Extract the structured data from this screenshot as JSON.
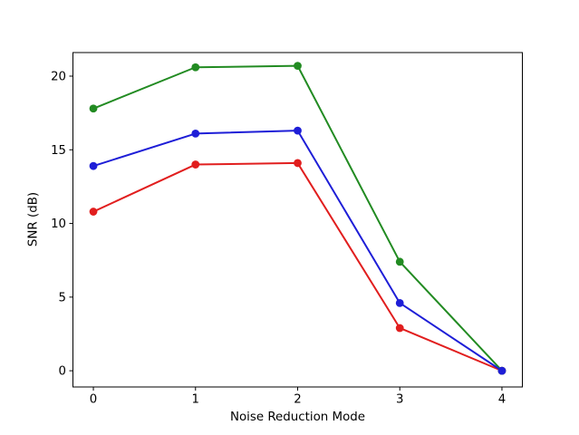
{
  "chart_data": {
    "type": "line",
    "title": "",
    "xlabel": "Noise Reduction Mode",
    "ylabel": "SNR (dB)",
    "x": [
      0,
      1,
      2,
      3,
      4
    ],
    "series": [
      {
        "name": "red-series",
        "color": "#e11e1e",
        "values": [
          10.8,
          14.0,
          14.1,
          2.9,
          0.0
        ]
      },
      {
        "name": "green-series",
        "color": "#228b22",
        "values": [
          17.8,
          20.6,
          20.7,
          7.4,
          0.0
        ]
      },
      {
        "name": "blue-series",
        "color": "#1e1ed7",
        "values": [
          13.9,
          16.1,
          16.3,
          4.6,
          0.0
        ]
      }
    ],
    "xticks": [
      "0",
      "1",
      "2",
      "3",
      "4"
    ],
    "xtick_values": [
      0,
      1,
      2,
      3,
      4
    ],
    "yticks": [
      "0",
      "5",
      "10",
      "15",
      "20"
    ],
    "ytick_values": [
      0,
      5,
      10,
      15,
      20
    ],
    "xlim": [
      -0.2,
      4.2
    ],
    "ylim": [
      -1.1,
      21.6
    ],
    "grid": false,
    "legend": null,
    "marker": "circle",
    "axes_color": "#000000",
    "background": "#ffffff"
  }
}
